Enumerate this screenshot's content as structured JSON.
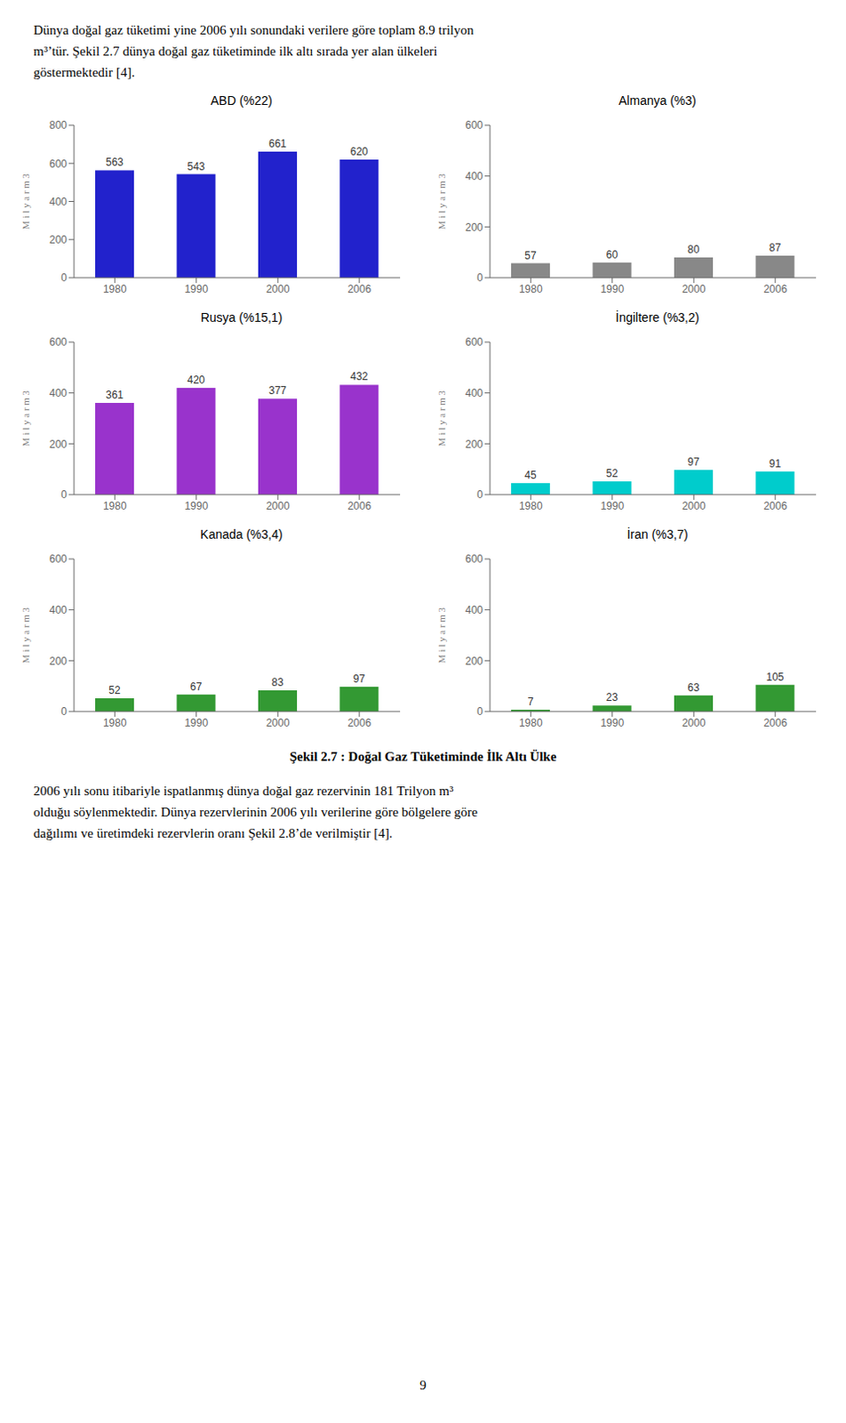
{
  "title": "Şekil 2.7 : Doğal Gaz Tüketiminde İlk Altı Ülke",
  "annotations": [
    "Dünya doğal gaz tüketimi yine 2006 yılı sonundaki verilere göre toplam 8.9 trilyon",
    "m³’tür.  Şekil 2.7 dünya doğal gaz tüketiminde ilk altı sırada yer alan ülkeleri",
    "göstermektedir [4].",
    "2006 yılı sonu itibariyle ispatlanmış dünya doğal gaz rezervinin 181 Trilyon m³",
    "olduğu söylenmektedir. Dünya rezervlerinin 2006 yılı verilerine göre bölgelere göre",
    "dağılımı ve üretimdeki rezervlerin oranı Şekil 2.8’de verilmiştir [4].",
    "9"
  ],
  "chart_data": [
    {
      "type": "bar",
      "title": "ABD (%22)",
      "ylabel": "M i l y a r  m 3",
      "categories": [
        "1980",
        "1990",
        "2000",
        "2006"
      ],
      "values": [
        563,
        543,
        661,
        620
      ],
      "color": "#2222CC",
      "ylim": [
        0,
        800
      ],
      "yticks": [
        0,
        200,
        400,
        600,
        800
      ],
      "data_labels": true,
      "grid": false
    },
    {
      "type": "bar",
      "title": "Almanya (%3)",
      "ylabel": "M i l y a r  m 3",
      "categories": [
        "1980",
        "1990",
        "2000",
        "2006"
      ],
      "values": [
        57,
        60,
        80,
        87
      ],
      "color": "#888888",
      "ylim": [
        0,
        600
      ],
      "yticks": [
        0,
        200,
        400,
        600
      ],
      "data_labels": true,
      "grid": false
    },
    {
      "type": "bar",
      "title": "Rusya (%15,1)",
      "ylabel": "M i l y a r  m 3",
      "categories": [
        "1980",
        "1990",
        "2000",
        "2006"
      ],
      "values": [
        361,
        420,
        377,
        432
      ],
      "color": "#9933CC",
      "ylim": [
        0,
        600
      ],
      "yticks": [
        0,
        200,
        400,
        600
      ],
      "data_labels": true,
      "grid": false
    },
    {
      "type": "bar",
      "title": "İngiltere (%3,2)",
      "ylabel": "M i l y a r  m 3",
      "categories": [
        "1980",
        "1990",
        "2000",
        "2006"
      ],
      "values": [
        45,
        52,
        97,
        91
      ],
      "color": "#00CCCC",
      "ylim": [
        0,
        600
      ],
      "yticks": [
        0,
        200,
        400,
        600
      ],
      "data_labels": true,
      "grid": false
    },
    {
      "type": "bar",
      "title": "Kanada (%3,4)",
      "ylabel": "M i l y a r  m 3",
      "categories": [
        "1980",
        "1990",
        "2000",
        "2006"
      ],
      "values": [
        52,
        67,
        83,
        97
      ],
      "color": "#339933",
      "ylim": [
        0,
        600
      ],
      "yticks": [
        0,
        200,
        400,
        600
      ],
      "data_labels": true,
      "grid": false
    },
    {
      "type": "bar",
      "title": "İran (%3,7)",
      "ylabel": "M i l y a r  m 3",
      "categories": [
        "1980",
        "1990",
        "2000",
        "2006"
      ],
      "values": [
        7,
        23,
        63,
        105
      ],
      "color": "#339933",
      "ylim": [
        0,
        600
      ],
      "yticks": [
        0,
        200,
        400,
        600
      ],
      "data_labels": true,
      "grid": false
    }
  ]
}
